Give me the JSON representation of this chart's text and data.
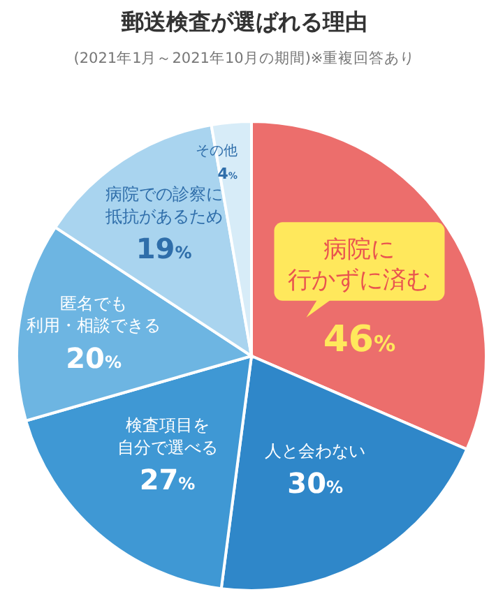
{
  "chart_data": {
    "type": "pie",
    "title": "郵送検査が選ばれる理由",
    "subtitle": "(2021年1月～2021年10月の期間)※重複回答あり",
    "categories": [
      "病院に行かずに済む",
      "人と会わない",
      "検査項目を自分で選べる",
      "匿名でも利用・相談できる",
      "病院での診察に抵抗があるため",
      "その他"
    ],
    "values": [
      46,
      30,
      27,
      20,
      19,
      4
    ],
    "value_labels": [
      "46%",
      "30%",
      "27%",
      "20%",
      "19%",
      "4%"
    ],
    "colors": [
      "#ec6e6c",
      "#2f87c9",
      "#3f98d4",
      "#6db5e2",
      "#a9d4ef",
      "#d7ecf8"
    ]
  }
}
